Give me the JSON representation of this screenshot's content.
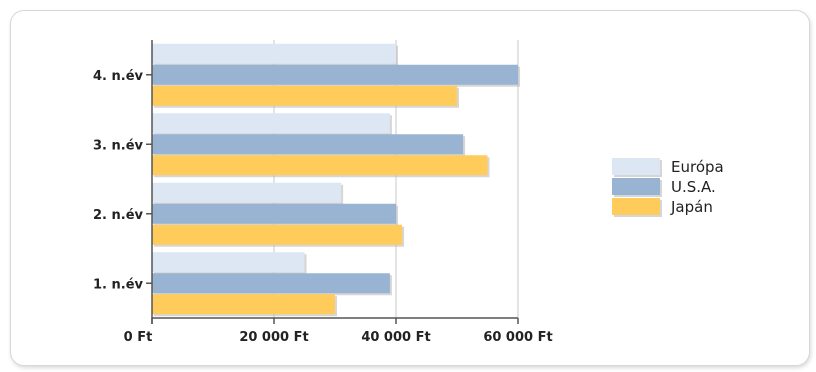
{
  "chart_data": {
    "type": "bar",
    "orientation": "horizontal",
    "categories": [
      "1. n.év",
      "2. n.év",
      "3. n.év",
      "4. n.év"
    ],
    "series": [
      {
        "name": "Európa",
        "color": "#dde6f3",
        "values": [
          25000,
          31000,
          39000,
          40000
        ]
      },
      {
        "name": "U.S.A.",
        "color": "#98b4d2",
        "values": [
          39000,
          40000,
          51000,
          60000
        ]
      },
      {
        "name": "Japán",
        "color": "#ffcc5c",
        "values": [
          30000,
          41000,
          55000,
          50000
        ]
      }
    ],
    "xlim": [
      0,
      60000
    ],
    "x_ticks": [
      "0 Ft",
      "20 000 Ft",
      "40 000 Ft",
      "60 000 Ft"
    ],
    "grid": "vertical",
    "legend": "right"
  }
}
